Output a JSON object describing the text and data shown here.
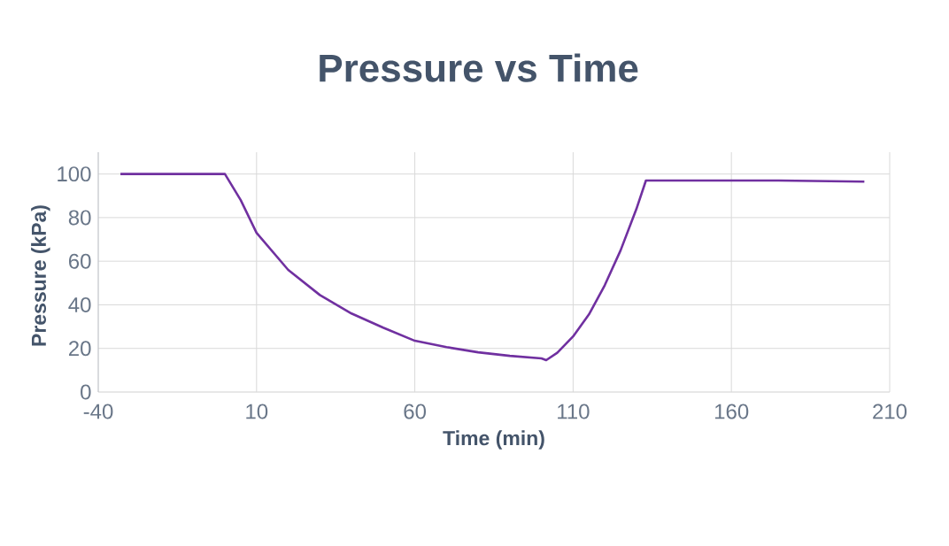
{
  "chart_data": {
    "type": "line",
    "title": "Pressure vs Time",
    "xlabel": "Time (min)",
    "ylabel": "Pressure (kPa)",
    "x": [
      -33,
      0,
      5,
      10,
      20,
      30,
      40,
      50,
      60,
      70,
      80,
      90,
      100,
      101.5,
      105,
      110,
      115,
      120,
      125,
      130,
      133,
      175,
      202
    ],
    "values": [
      100,
      100,
      88,
      73,
      56,
      44.5,
      36,
      29.5,
      23.5,
      20.6,
      18.2,
      16.6,
      15.4,
      14.6,
      18,
      25.5,
      35.6,
      49,
      65,
      84,
      97,
      97,
      96.5
    ],
    "color": "#7030a0",
    "xlim": [
      -40,
      210
    ],
    "ylim": [
      0,
      110
    ],
    "xticks": [
      -40,
      10,
      60,
      110,
      160,
      210
    ],
    "yticks": [
      0,
      20,
      40,
      60,
      80,
      100
    ],
    "grid": true,
    "marker": "none",
    "line_style": "solid"
  }
}
